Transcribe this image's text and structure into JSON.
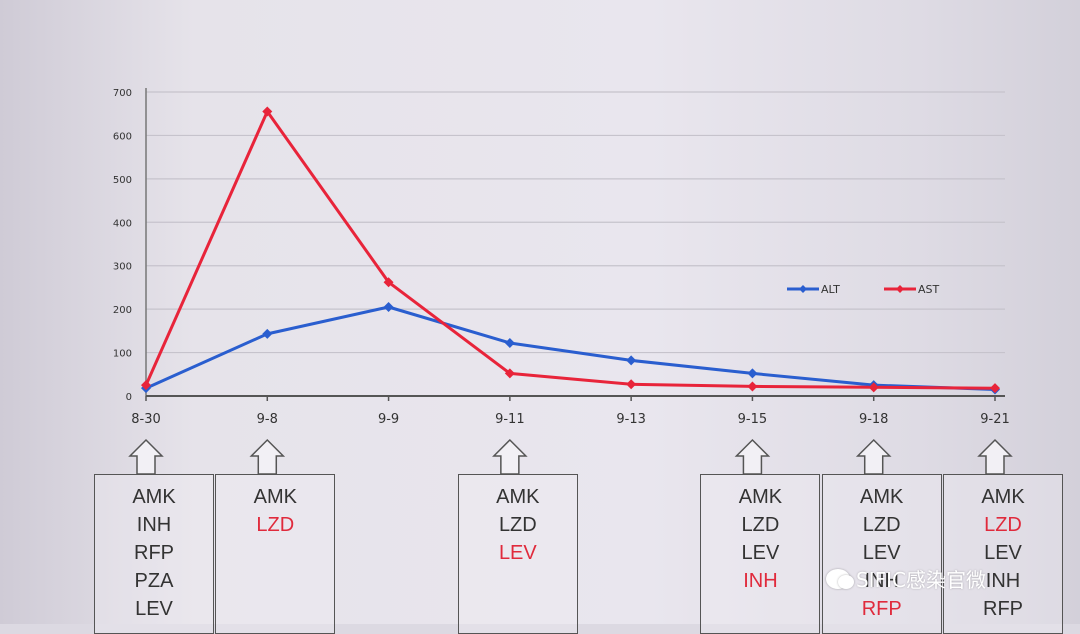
{
  "chart_data": {
    "type": "line",
    "categories": [
      "8-30",
      "9-8",
      "9-9",
      "9-11",
      "9-13",
      "9-15",
      "9-18",
      "9-21"
    ],
    "series": [
      {
        "name": "ALT",
        "color": "#2a5ecf",
        "values": [
          18,
          143,
          205,
          122,
          82,
          52,
          25,
          15
        ]
      },
      {
        "name": "AST",
        "color": "#e8243a",
        "values": [
          25,
          655,
          262,
          52,
          27,
          22,
          20,
          18
        ]
      }
    ],
    "y_ticks": [
      "0",
      "100",
      "200",
      "300",
      "400",
      "500",
      "600",
      "700"
    ],
    "ylim": [
      0,
      700
    ],
    "grid": true,
    "legend_position": "right, above the lines",
    "title": "",
    "xlabel": "",
    "ylabel": ""
  },
  "regimens": [
    {
      "under": "8-30",
      "drugs": [
        {
          "text": "AMK",
          "color": "#333333"
        },
        {
          "text": "INH",
          "color": "#333333"
        },
        {
          "text": "RFP",
          "color": "#333333"
        },
        {
          "text": "PZA",
          "color": "#333333"
        },
        {
          "text": "LEV",
          "color": "#333333"
        }
      ]
    },
    {
      "under": "9-8",
      "drugs": [
        {
          "text": "AMK",
          "color": "#333333"
        },
        {
          "text": "LZD",
          "color": "#e02a3c"
        }
      ]
    },
    {
      "under": "9-11",
      "drugs": [
        {
          "text": "AMK",
          "color": "#333333"
        },
        {
          "text": "LZD",
          "color": "#333333"
        },
        {
          "text": "LEV",
          "color": "#e02a3c"
        }
      ]
    },
    {
      "under": "9-15",
      "drugs": [
        {
          "text": "AMK",
          "color": "#333333"
        },
        {
          "text": "LZD",
          "color": "#333333"
        },
        {
          "text": "LEV",
          "color": "#333333"
        },
        {
          "text": "INH",
          "color": "#e02a3c"
        }
      ]
    },
    {
      "under": "9-18",
      "drugs": [
        {
          "text": "AMK",
          "color": "#333333"
        },
        {
          "text": "LZD",
          "color": "#333333"
        },
        {
          "text": "LEV",
          "color": "#333333"
        },
        {
          "text": "INH",
          "color": "#333333"
        },
        {
          "text": "RFP",
          "color": "#e02a3c"
        }
      ]
    },
    {
      "under": "9-21",
      "drugs": [
        {
          "text": "AMK",
          "color": "#333333"
        },
        {
          "text": "LZD",
          "color": "#e02a3c"
        },
        {
          "text": "LEV",
          "color": "#333333"
        },
        {
          "text": "INH",
          "color": "#333333"
        },
        {
          "text": "RFP",
          "color": "#333333"
        }
      ]
    }
  ],
  "watermark": {
    "text": "SIFIC感染官微",
    "icon": "wechat-icon"
  }
}
